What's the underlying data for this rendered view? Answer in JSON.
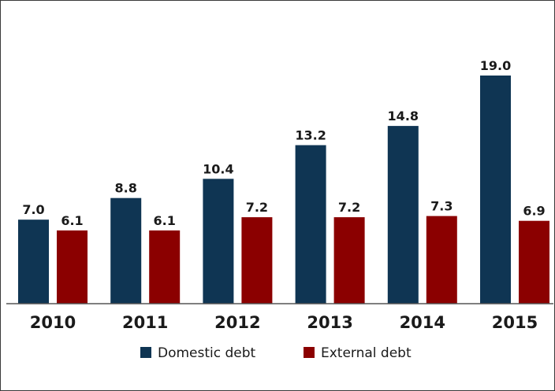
{
  "chart_data": {
    "type": "bar",
    "title": "",
    "xlabel": "",
    "ylabel": "",
    "categories": [
      "2010",
      "2011",
      "2012",
      "2013",
      "2014",
      "2015"
    ],
    "series": [
      {
        "name": "Domestic debt",
        "values": [
          7.0,
          8.8,
          10.4,
          13.2,
          14.8,
          19.0
        ],
        "color": "#0f3553"
      },
      {
        "name": "External debt",
        "values": [
          6.1,
          6.1,
          7.2,
          7.2,
          7.3,
          6.9
        ],
        "color": "#8b0000"
      }
    ],
    "ylim": [
      0,
      20
    ],
    "grid": false,
    "legend": "bottom",
    "data_labels": true
  }
}
